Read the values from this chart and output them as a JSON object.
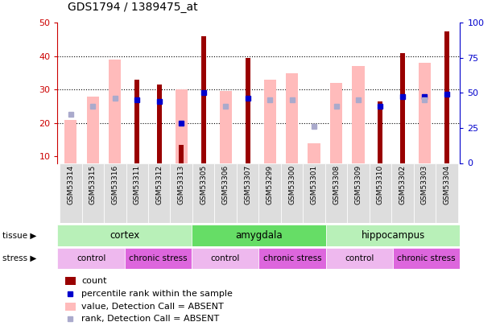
{
  "title": "GDS1794 / 1389475_at",
  "samples": [
    "GSM53314",
    "GSM53315",
    "GSM53316",
    "GSM53311",
    "GSM53312",
    "GSM53313",
    "GSM53305",
    "GSM53306",
    "GSM53307",
    "GSM53299",
    "GSM53300",
    "GSM53301",
    "GSM53308",
    "GSM53309",
    "GSM53310",
    "GSM53302",
    "GSM53303",
    "GSM53304"
  ],
  "count_values": [
    0,
    0,
    0,
    33,
    31.5,
    13.5,
    46,
    0,
    39.5,
    0,
    0,
    0,
    0,
    0,
    26.5,
    41,
    0,
    47.5
  ],
  "pink_values": [
    21,
    28,
    39,
    0,
    0,
    30,
    0,
    29.5,
    0,
    33,
    35,
    14,
    32,
    37,
    0,
    0,
    38,
    0
  ],
  "blue_dot_values": [
    0,
    0,
    0,
    27,
    26.5,
    20,
    29,
    0,
    27.5,
    0,
    0,
    0,
    0,
    0,
    25,
    28,
    28,
    28.5
  ],
  "light_blue_values": [
    22.5,
    25,
    27.5,
    0,
    0,
    0,
    0,
    25,
    0,
    27,
    27,
    19,
    25,
    27,
    0,
    0,
    27,
    0
  ],
  "tissue_groups": [
    {
      "label": "cortex",
      "start": 0,
      "end": 6,
      "color": "#b8f0b8"
    },
    {
      "label": "amygdala",
      "start": 6,
      "end": 12,
      "color": "#66dd66"
    },
    {
      "label": "hippocampus",
      "start": 12,
      "end": 18,
      "color": "#b8f0b8"
    }
  ],
  "stress_groups": [
    {
      "label": "control",
      "start": 0,
      "end": 3,
      "color": "#eeb8ee"
    },
    {
      "label": "chronic stress",
      "start": 3,
      "end": 6,
      "color": "#dd66dd"
    },
    {
      "label": "control",
      "start": 6,
      "end": 9,
      "color": "#eeb8ee"
    },
    {
      "label": "chronic stress",
      "start": 9,
      "end": 12,
      "color": "#dd66dd"
    },
    {
      "label": "control",
      "start": 12,
      "end": 15,
      "color": "#eeb8ee"
    },
    {
      "label": "chronic stress",
      "start": 15,
      "end": 18,
      "color": "#dd66dd"
    }
  ],
  "ylim_left": [
    8,
    50
  ],
  "ylim_right": [
    0,
    100
  ],
  "yticks_left": [
    10,
    20,
    30,
    40,
    50
  ],
  "yticks_right": [
    0,
    25,
    50,
    75,
    100
  ],
  "count_color": "#990000",
  "pink_color": "#ffbbbb",
  "blue_color": "#0000cc",
  "light_blue_color": "#aaaacc",
  "bg_color": "#ffffff",
  "label_color_left": "#cc0000",
  "label_color_right": "#0000cc",
  "xticklabel_bg": "#dddddd"
}
